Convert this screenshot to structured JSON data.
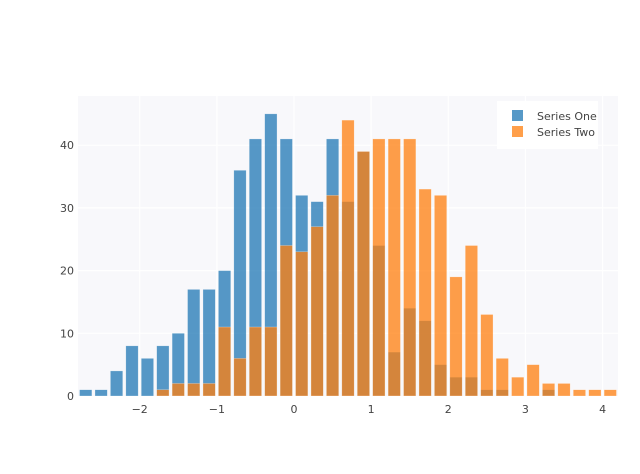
{
  "chart_data": {
    "type": "bar",
    "mode": "overlay",
    "title": "",
    "xlabel": "",
    "ylabel": "",
    "xlim": [
      -2.8,
      4.2
    ],
    "ylim": [
      0,
      48
    ],
    "grid": true,
    "legend_position": "top-right",
    "bin_width": 0.2,
    "x": [
      -2.7,
      -2.5,
      -2.3,
      -2.1,
      -1.9,
      -1.7,
      -1.5,
      -1.3,
      -1.1,
      -0.9,
      -0.7,
      -0.5,
      -0.3,
      -0.1,
      0.1,
      0.3,
      0.5,
      0.7,
      0.9,
      1.1,
      1.3,
      1.5,
      1.7,
      1.9,
      2.1,
      2.3,
      2.5,
      2.7,
      2.9,
      3.1,
      3.3,
      3.5,
      3.7,
      3.9,
      4.1
    ],
    "series": [
      {
        "name": "Series One",
        "color": "#1f77b4",
        "values": [
          1,
          1,
          4,
          8,
          6,
          8,
          10,
          17,
          17,
          20,
          36,
          41,
          45,
          41,
          32,
          31,
          41,
          31,
          39,
          24,
          7,
          14,
          12,
          5,
          3,
          3,
          1,
          1,
          0,
          0,
          1,
          0,
          0,
          0,
          0
        ]
      },
      {
        "name": "Series Two",
        "color": "#ff7f0e",
        "values": [
          0,
          0,
          0,
          0,
          0,
          1,
          2,
          2,
          2,
          11,
          6,
          11,
          11,
          24,
          23,
          27,
          32,
          44,
          39,
          41,
          41,
          41,
          33,
          32,
          19,
          24,
          13,
          6,
          3,
          5,
          2,
          2,
          1,
          1,
          1
        ]
      }
    ],
    "xticks": [
      -2,
      -1,
      0,
      1,
      2,
      3,
      4
    ],
    "xtick_labels": [
      "−2",
      "−1",
      "0",
      "1",
      "2",
      "3",
      "4"
    ],
    "yticks": [
      0,
      10,
      20,
      30,
      40
    ],
    "ytick_labels": [
      "0",
      "10",
      "20",
      "30",
      "40"
    ]
  },
  "legend": {
    "items": [
      {
        "label": "Series One",
        "color": "#1f77b4"
      },
      {
        "label": "Series Two",
        "color": "#ff7f0e"
      }
    ]
  },
  "style": {
    "plot_bg": "#f8f8fb",
    "grid_color": "#ffffff",
    "bar_opacity": 0.75
  }
}
